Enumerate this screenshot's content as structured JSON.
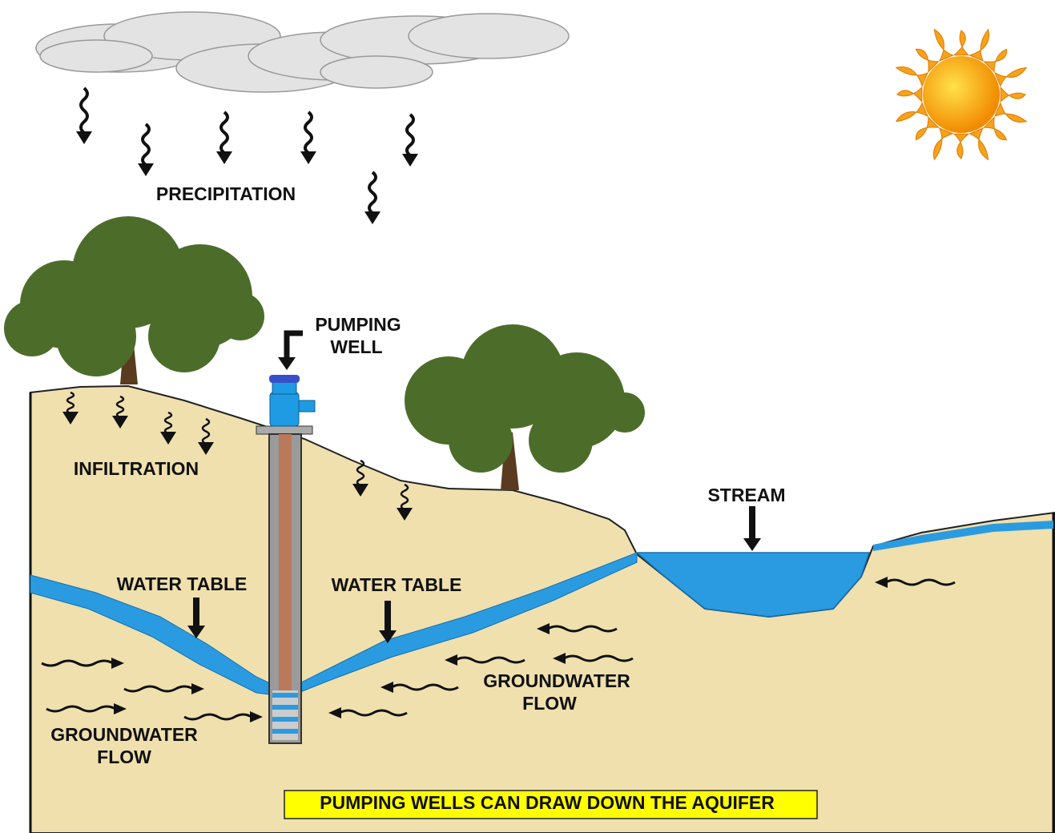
{
  "labels": {
    "precipitation": "PRECIPITATION",
    "pumping_well": [
      "PUMPING",
      "WELL"
    ],
    "infiltration": "INFILTRATION",
    "stream": "STREAM",
    "water_table_left": "WATER TABLE",
    "water_table_right": "WATER TABLE",
    "groundwater_flow_left": [
      "GROUNDWATER",
      "FLOW"
    ],
    "groundwater_flow_right": [
      "GROUNDWATER",
      "FLOW"
    ],
    "caption": "PUMPING WELLS CAN DRAW DOWN THE AQUIFER"
  }
}
